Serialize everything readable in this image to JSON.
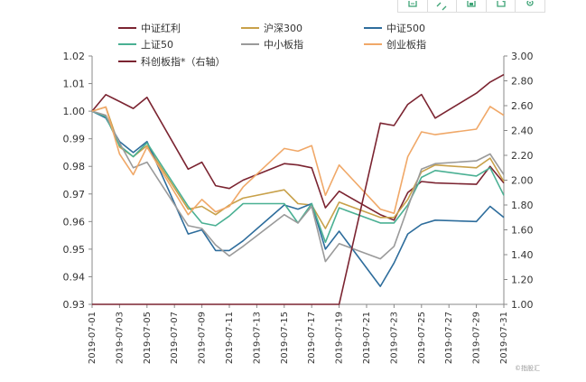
{
  "toolbar": {
    "buttons": [
      {
        "name": "copy-icon"
      },
      {
        "name": "expand-icon"
      },
      {
        "name": "save-icon"
      },
      {
        "name": "share-icon"
      },
      {
        "name": "settings-icon"
      }
    ]
  },
  "watermark": "©指股汇",
  "chart_data": {
    "type": "line",
    "categories": [
      "2019-07-01",
      "2019-07-02",
      "2019-07-03",
      "2019-07-04",
      "2019-07-05",
      "2019-07-08",
      "2019-07-09",
      "2019-07-10",
      "2019-07-11",
      "2019-07-12",
      "2019-07-15",
      "2019-07-16",
      "2019-07-17",
      "2019-07-18",
      "2019-07-19",
      "2019-07-22",
      "2019-07-23",
      "2019-07-24",
      "2019-07-25",
      "2019-07-26",
      "2019-07-29",
      "2019-07-30",
      "2019-07-31"
    ],
    "xticks": [
      "2019-07-01",
      "2019-07-03",
      "2019-07-05",
      "2019-07-07",
      "2019-07-09",
      "2019-07-11",
      "2019-07-13",
      "2019-07-15",
      "2019-07-17",
      "2019-07-19",
      "2019-07-21",
      "2019-07-23",
      "2019-07-25",
      "2019-07-27",
      "2019-07-29",
      "2019-07-31"
    ],
    "y_left": {
      "min": 0.93,
      "max": 1.02,
      "ticks": [
        "0.93",
        "0.94",
        "0.95",
        "0.96",
        "0.97",
        "0.98",
        "0.99",
        "1.00",
        "1.01",
        "1.02"
      ]
    },
    "y_right": {
      "min": 1.0,
      "max": 3.0,
      "ticks": [
        "1.00",
        "1.20",
        "1.40",
        "1.60",
        "1.80",
        "2.00",
        "2.20",
        "2.40",
        "2.60",
        "2.80",
        "3.00"
      ]
    },
    "series": [
      {
        "name": "中证红利",
        "color": "#7b2431",
        "axis": "left",
        "values": [
          1.0,
          1.006,
          1.0035,
          1.001,
          1.005,
          0.979,
          0.9815,
          0.973,
          0.972,
          0.975,
          0.981,
          0.9805,
          0.9795,
          0.965,
          0.971,
          0.9625,
          0.9605,
          0.9705,
          0.9745,
          0.974,
          0.9735,
          0.98,
          0.974
        ]
      },
      {
        "name": "沪深300",
        "color": "#c8a14a",
        "axis": "left",
        "values": [
          1.0,
          1.0015,
          0.987,
          0.9835,
          0.9875,
          0.9645,
          0.9655,
          0.9625,
          0.966,
          0.9685,
          0.9715,
          0.9665,
          0.966,
          0.9575,
          0.967,
          0.9615,
          0.9615,
          0.968,
          0.978,
          0.9805,
          0.9795,
          0.983,
          0.9745
        ]
      },
      {
        "name": "中证500",
        "color": "#2e6d9c",
        "axis": "left",
        "values": [
          1.0,
          0.9975,
          0.989,
          0.985,
          0.989,
          0.9555,
          0.957,
          0.9495,
          0.9495,
          0.953,
          0.966,
          0.9645,
          0.9665,
          0.95,
          0.9565,
          0.9365,
          0.945,
          0.9555,
          0.959,
          0.9605,
          0.96,
          0.9655,
          0.9615
        ]
      },
      {
        "name": "上证50",
        "color": "#4ab093",
        "axis": "left",
        "values": [
          1.0,
          0.998,
          0.9875,
          0.9835,
          0.9885,
          0.9655,
          0.9595,
          0.9585,
          0.962,
          0.9665,
          0.9665,
          0.9595,
          0.9665,
          0.9525,
          0.965,
          0.9595,
          0.9595,
          0.966,
          0.976,
          0.9785,
          0.9765,
          0.9795,
          0.9695
        ]
      },
      {
        "name": "中小板指",
        "color": "#9a9a9a",
        "axis": "left",
        "values": [
          1.0,
          0.9985,
          0.9885,
          0.9795,
          0.9815,
          0.9585,
          0.9575,
          0.9515,
          0.9475,
          0.951,
          0.9625,
          0.9595,
          0.9655,
          0.9455,
          0.952,
          0.9465,
          0.951,
          0.965,
          0.979,
          0.981,
          0.982,
          0.9845,
          0.977
        ]
      },
      {
        "name": "创业板指",
        "color": "#f0a868",
        "axis": "left",
        "values": [
          1.0,
          1.0015,
          0.9845,
          0.977,
          0.987,
          0.9625,
          0.968,
          0.9635,
          0.9655,
          0.9725,
          0.9865,
          0.9855,
          0.9875,
          0.9695,
          0.9805,
          0.9645,
          0.963,
          0.9835,
          0.9925,
          0.9915,
          0.9935,
          1.0017,
          0.9985
        ]
      },
      {
        "name": "科创板指*（右轴）",
        "color": "#7b2431",
        "axis": "right",
        "values": [
          1.0,
          1.0,
          1.0,
          1.0,
          1.0,
          1.0,
          1.0,
          1.0,
          1.0,
          1.0,
          1.0,
          1.0,
          1.0,
          1.0,
          1.0,
          2.46,
          2.44,
          2.61,
          2.69,
          2.5,
          2.7,
          2.79,
          2.85
        ]
      }
    ],
    "series_x": [
      1,
      2,
      3,
      4,
      5,
      8,
      9,
      10,
      11,
      12,
      15,
      16,
      17,
      18,
      19,
      22,
      23,
      24,
      25,
      26,
      29,
      30,
      31
    ],
    "legend": {
      "placement": "top",
      "columns": 3
    },
    "title": "",
    "xlabel": "",
    "ylabel": ""
  }
}
